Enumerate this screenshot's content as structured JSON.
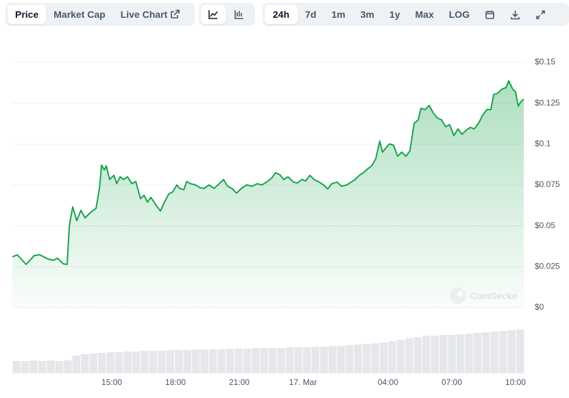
{
  "toolbar": {
    "tabs": [
      "Price",
      "Market Cap",
      "Live Chart"
    ],
    "ranges": [
      "24h",
      "7d",
      "1m",
      "3m",
      "1y",
      "Max"
    ],
    "scale": "LOG"
  },
  "chart_data": {
    "type": "area",
    "color": "#16a34a",
    "watermark": "CoinGecko",
    "x": [
      -13.68,
      -13.45,
      -13.03,
      -12.65,
      -12.39,
      -12.0,
      -11.74,
      -11.55,
      -11.29,
      -11.1,
      -11.0,
      -10.84,
      -10.65,
      -10.45,
      -10.26,
      -10.0,
      -9.74,
      -9.58,
      -9.48,
      -9.35,
      -9.26,
      -9.1,
      -8.9,
      -8.77,
      -8.61,
      -8.45,
      -8.26,
      -8.06,
      -7.87,
      -7.65,
      -7.48,
      -7.32,
      -7.16,
      -6.9,
      -6.71,
      -6.52,
      -6.32,
      -6.13,
      -5.94,
      -5.81,
      -5.61,
      -5.48,
      -5.29,
      -5.06,
      -4.84,
      -4.65,
      -4.42,
      -4.19,
      -3.94,
      -3.74,
      -3.55,
      -3.35,
      -3.13,
      -2.9,
      -2.65,
      -2.39,
      -2.16,
      -1.94,
      -1.68,
      -1.48,
      -1.29,
      -1.1,
      -0.9,
      -0.71,
      -0.45,
      -0.26,
      -0.06,
      0.13,
      0.32,
      0.52,
      0.77,
      0.97,
      1.16,
      1.35,
      1.61,
      1.81,
      2.06,
      2.26,
      2.45,
      2.65,
      2.84,
      3.06,
      3.23,
      3.42,
      3.61,
      3.74,
      3.9,
      4.06,
      4.26,
      4.45,
      4.65,
      4.84,
      5.03,
      5.23,
      5.42,
      5.55,
      5.74,
      5.94,
      6.13,
      6.32,
      6.52,
      6.71,
      6.9,
      7.1,
      7.29,
      7.48,
      7.68,
      7.87,
      8.06,
      8.26,
      8.45,
      8.65,
      8.84,
      8.97,
      9.16,
      9.35,
      9.55,
      9.68,
      9.87,
      10.0,
      10.13,
      10.26,
      10.39
    ],
    "values": [
      0.031,
      0.0323,
      0.0264,
      0.0318,
      0.0323,
      0.0297,
      0.0289,
      0.0302,
      0.0268,
      0.0264,
      0.0499,
      0.0616,
      0.0532,
      0.0595,
      0.0549,
      0.0582,
      0.0607,
      0.0729,
      0.0871,
      0.0842,
      0.0867,
      0.0783,
      0.0809,
      0.0758,
      0.08,
      0.0783,
      0.08,
      0.0758,
      0.0771,
      0.0666,
      0.0687,
      0.0645,
      0.0674,
      0.0624,
      0.0591,
      0.0645,
      0.0695,
      0.0708,
      0.075,
      0.0729,
      0.0721,
      0.0771,
      0.0758,
      0.075,
      0.0733,
      0.0729,
      0.075,
      0.0729,
      0.0758,
      0.0783,
      0.0742,
      0.0729,
      0.07,
      0.0729,
      0.075,
      0.0742,
      0.0758,
      0.075,
      0.0771,
      0.0792,
      0.0825,
      0.0813,
      0.0783,
      0.08,
      0.0767,
      0.0762,
      0.0783,
      0.0775,
      0.0809,
      0.0783,
      0.0767,
      0.075,
      0.0725,
      0.0758,
      0.0767,
      0.0742,
      0.075,
      0.0767,
      0.0783,
      0.0809,
      0.0825,
      0.085,
      0.0867,
      0.0909,
      0.1018,
      0.0951,
      0.0976,
      0.1001,
      0.0993,
      0.0926,
      0.0951,
      0.0926,
      0.0959,
      0.1127,
      0.1148,
      0.1219,
      0.1211,
      0.1236,
      0.119,
      0.116,
      0.1148,
      0.1106,
      0.1119,
      0.1052,
      0.1093,
      0.106,
      0.1085,
      0.1102,
      0.1093,
      0.1127,
      0.1177,
      0.1211,
      0.1211,
      0.1303,
      0.1311,
      0.1336,
      0.1345,
      0.1387,
      0.1336,
      0.132,
      0.1232,
      0.1261,
      0.1274
    ],
    "xlim": [
      -13.68,
      10.42
    ],
    "xticks": [
      {
        "value": -9,
        "label": "15:00"
      },
      {
        "value": -6,
        "label": "18:00"
      },
      {
        "value": -3,
        "label": "21:00"
      },
      {
        "value": 0,
        "label": "17. Mar"
      },
      {
        "value": 4,
        "label": "04:00"
      },
      {
        "value": 7,
        "label": "07:00"
      },
      {
        "value": 10,
        "label": "10:00"
      }
    ],
    "ylim": [
      0,
      0.15
    ],
    "yticks": [
      {
        "value": 0,
        "label": "$0"
      },
      {
        "value": 0.025,
        "label": "$0.025"
      },
      {
        "value": 0.05,
        "label": "$0.05"
      },
      {
        "value": 0.075,
        "label": "$0.075"
      },
      {
        "value": 0.1,
        "label": "$0.1"
      },
      {
        "value": 0.125,
        "label": "$0.125"
      },
      {
        "value": 0.15,
        "label": "$0.15"
      }
    ],
    "grid": true,
    "volume": {
      "color": "#e5e7eb",
      "ylim": [
        0,
        70
      ],
      "values": [
        18,
        18,
        19,
        18,
        19,
        18,
        19,
        26,
        28,
        29,
        30,
        31,
        31,
        32,
        32,
        33,
        33,
        33,
        34,
        34,
        34,
        35,
        35,
        35,
        35,
        36,
        36,
        36,
        37,
        37,
        37,
        37,
        38,
        38,
        38,
        39,
        39,
        40,
        40,
        41,
        42,
        43,
        44,
        45,
        47,
        49,
        51,
        53,
        55,
        55,
        56,
        56,
        57,
        58,
        59,
        60,
        61,
        62,
        63,
        64
      ]
    }
  }
}
